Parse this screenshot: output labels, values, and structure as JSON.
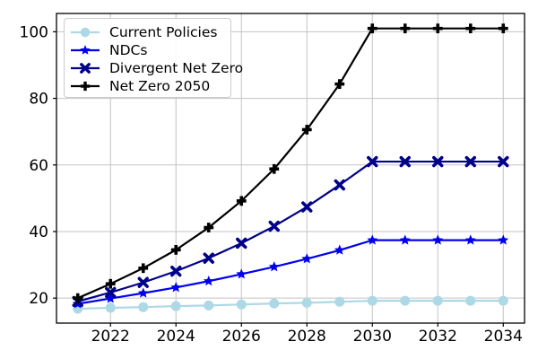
{
  "chart_data": {
    "type": "line",
    "title": "",
    "xlabel": "",
    "ylabel": "",
    "x": [
      2021,
      2022,
      2023,
      2024,
      2025,
      2026,
      2027,
      2028,
      2029,
      2030,
      2031,
      2032,
      2033,
      2034
    ],
    "series": [
      {
        "name": "Current Policies",
        "color": "#ADD8E6",
        "marker": "circle",
        "values": [
          16.8,
          17.1,
          17.3,
          17.6,
          17.8,
          18.1,
          18.4,
          18.6,
          18.9,
          19.2,
          19.2,
          19.2,
          19.2,
          19.2
        ]
      },
      {
        "name": "NDCs",
        "color": "#0000EE",
        "marker": "star",
        "values": [
          18.3,
          19.9,
          21.5,
          23.2,
          25.1,
          27.2,
          29.4,
          31.8,
          34.4,
          37.4,
          37.4,
          37.4,
          37.4,
          37.4
        ]
      },
      {
        "name": "Divergent Net Zero",
        "color": "#00008B",
        "marker": "x",
        "values": [
          19.0,
          21.7,
          24.7,
          28.1,
          32.0,
          36.5,
          41.6,
          47.4,
          54.0,
          61.0,
          61.0,
          61.0,
          61.0,
          61.0
        ]
      },
      {
        "name": "Net Zero 2050",
        "color": "#000000",
        "marker": "plus",
        "values": [
          20.0,
          24.3,
          29.0,
          34.5,
          41.2,
          49.2,
          58.8,
          70.6,
          84.3,
          101.0,
          101.0,
          101.0,
          101.0,
          101.0
        ]
      }
    ],
    "xticks": [
      2022,
      2024,
      2026,
      2028,
      2030,
      2032,
      2034
    ],
    "yticks": [
      20,
      40,
      60,
      80,
      100
    ],
    "xlim": [
      2020.35,
      2034.65
    ],
    "ylim": [
      12.5,
      105.5
    ],
    "grid": true,
    "grid_color": "#c3c3c3",
    "axis_color": "#000000",
    "legend_position": "upper-left",
    "legend_labels": [
      "Current Policies",
      "NDCs",
      "Divergent Net Zero",
      "Net Zero 2050"
    ]
  }
}
